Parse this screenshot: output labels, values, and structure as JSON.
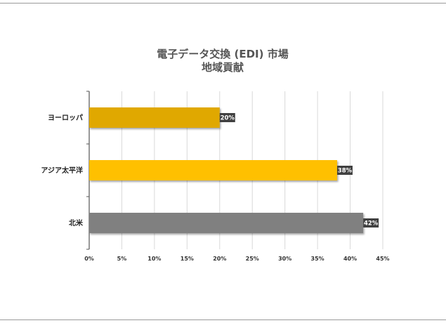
{
  "chart_data": {
    "type": "bar",
    "orientation": "horizontal",
    "title_lines": [
      "電子データ交換 (EDI) 市場",
      "地域貢献"
    ],
    "categories": [
      "ヨーロッパ",
      "アジア太平洋",
      "北米"
    ],
    "values": [
      20,
      38,
      42
    ],
    "data_labels": [
      "20%",
      "38%",
      "42%"
    ],
    "bar_colors": [
      "#E0A800",
      "#FFC000",
      "#808080"
    ],
    "xlim": [
      0,
      45
    ],
    "xticks": [
      0,
      5,
      10,
      15,
      20,
      25,
      30,
      35,
      40,
      45
    ],
    "xtick_labels": [
      "0%",
      "5%",
      "10%",
      "15%",
      "20%",
      "25%",
      "30%",
      "35%",
      "40%",
      "45%"
    ],
    "grid": "vertical",
    "legend": "none"
  }
}
